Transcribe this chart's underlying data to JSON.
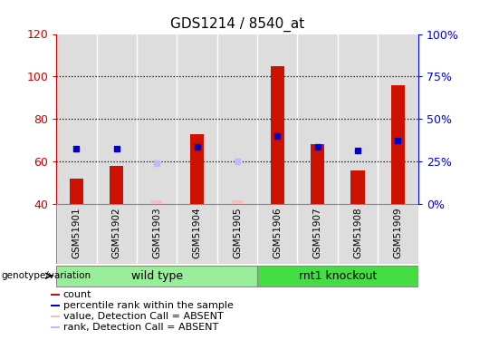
{
  "title": "GDS1214 / 8540_at",
  "samples": [
    "GSM51901",
    "GSM51902",
    "GSM51903",
    "GSM51904",
    "GSM51905",
    "GSM51906",
    "GSM51907",
    "GSM51908",
    "GSM51909"
  ],
  "count": [
    52,
    58,
    null,
    73,
    null,
    105,
    68,
    56,
    96
  ],
  "percentile_rank": [
    66,
    66,
    null,
    67,
    null,
    72,
    67,
    65,
    70
  ],
  "absent_value": [
    null,
    null,
    41.5,
    null,
    41.5,
    null,
    null,
    null,
    null
  ],
  "absent_rank": [
    null,
    null,
    59,
    null,
    60,
    null,
    null,
    null,
    null
  ],
  "ylim": [
    40,
    120
  ],
  "yticks": [
    40,
    60,
    80,
    100,
    120
  ],
  "y2lim": [
    0,
    100
  ],
  "y2ticks": [
    0,
    25,
    50,
    75,
    100
  ],
  "y2ticklabels": [
    "0%",
    "25%",
    "50%",
    "75%",
    "100%"
  ],
  "bar_color": "#cc1100",
  "rank_color": "#0000cc",
  "absent_value_color": "#ffbbbb",
  "absent_rank_color": "#bbbbff",
  "wild_type_label": "wild type",
  "knockout_label": "rnt1 knockout",
  "group_label": "genotype/variation",
  "wt_color": "#99ee99",
  "ko_color": "#44dd44",
  "col_bg_color": "#dddddd",
  "bar_width": 0.35
}
